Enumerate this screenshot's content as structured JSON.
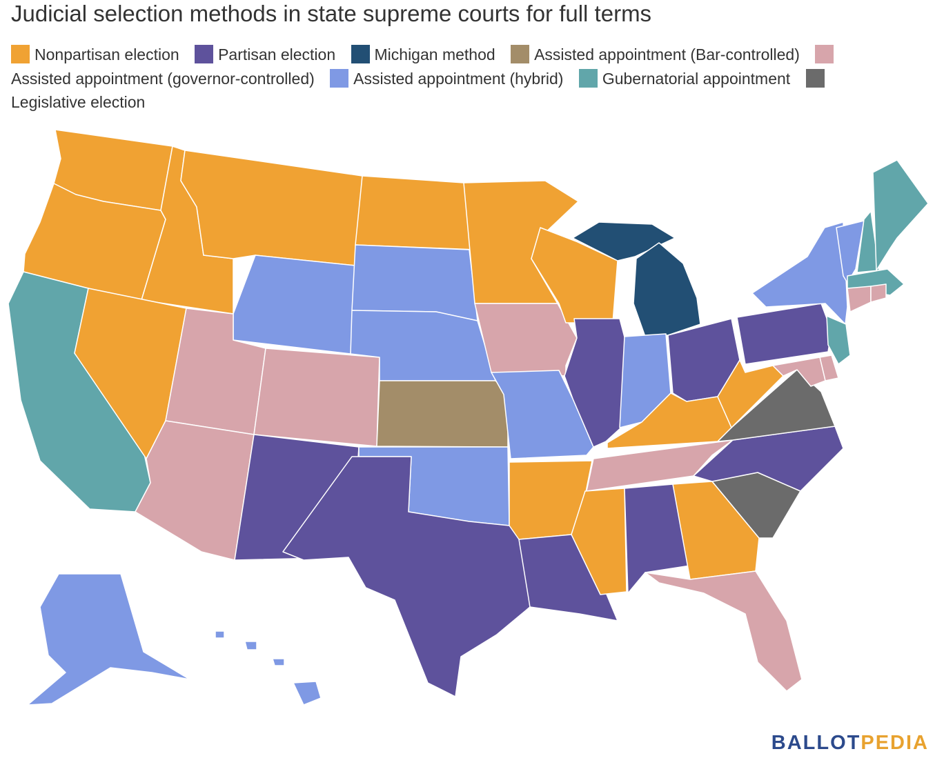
{
  "title": "Judicial selection methods in state supreme courts for full terms",
  "legend": [
    {
      "label": "Nonpartisan election",
      "color": "#f0a233"
    },
    {
      "label": "Partisan election",
      "color": "#5e529c"
    },
    {
      "label": "Michigan method",
      "color": "#224f74"
    },
    {
      "label": "Assisted appointment (Bar-controlled)",
      "color": "#a38d69"
    },
    {
      "label": "Assisted appointment (governor-controlled)",
      "color": "#d7a5ab"
    },
    {
      "label": "Assisted appointment (hybrid)",
      "color": "#7f99e4"
    },
    {
      "label": "Gubernatorial appointment",
      "color": "#61a6aa"
    },
    {
      "label": "Legislative election",
      "color": "#6b6b6b"
    }
  ],
  "chart_data": {
    "type": "choropleth",
    "categories": [
      "Nonpartisan election",
      "Partisan election",
      "Michigan method",
      "Assisted appointment (Bar-controlled)",
      "Assisted appointment (governor-controlled)",
      "Assisted appointment (hybrid)",
      "Gubernatorial appointment",
      "Legislative election"
    ],
    "states": {
      "WA": "Nonpartisan election",
      "OR": "Nonpartisan election",
      "ID": "Nonpartisan election",
      "MT": "Nonpartisan election",
      "NV": "Nonpartisan election",
      "ND": "Nonpartisan election",
      "MN": "Nonpartisan election",
      "WI": "Nonpartisan election",
      "AR": "Nonpartisan election",
      "MS": "Nonpartisan election",
      "GA": "Nonpartisan election",
      "KY": "Nonpartisan election",
      "WV": "Nonpartisan election",
      "NM": "Partisan election",
      "TX": "Partisan election",
      "LA": "Partisan election",
      "AL": "Partisan election",
      "IL": "Partisan election",
      "OH": "Partisan election",
      "PA": "Partisan election",
      "NC": "Partisan election",
      "MI": "Michigan method",
      "KS": "Assisted appointment (Bar-controlled)",
      "UT": "Assisted appointment (governor-controlled)",
      "CO": "Assisted appointment (governor-controlled)",
      "AZ": "Assisted appointment (governor-controlled)",
      "IA": "Assisted appointment (governor-controlled)",
      "TN": "Assisted appointment (governor-controlled)",
      "FL": "Assisted appointment (governor-controlled)",
      "MD": "Assisted appointment (governor-controlled)",
      "DE": "Assisted appointment (governor-controlled)",
      "CT": "Assisted appointment (governor-controlled)",
      "RI": "Assisted appointment (governor-controlled)",
      "AK": "Assisted appointment (hybrid)",
      "HI": "Assisted appointment (hybrid)",
      "WY": "Assisted appointment (hybrid)",
      "SD": "Assisted appointment (hybrid)",
      "NE": "Assisted appointment (hybrid)",
      "OK": "Assisted appointment (hybrid)",
      "MO": "Assisted appointment (hybrid)",
      "IN": "Assisted appointment (hybrid)",
      "NY": "Assisted appointment (hybrid)",
      "VT": "Assisted appointment (hybrid)",
      "CA": "Gubernatorial appointment",
      "NJ": "Gubernatorial appointment",
      "ME": "Gubernatorial appointment",
      "NH": "Gubernatorial appointment",
      "MA": "Gubernatorial appointment",
      "VA": "Legislative election",
      "SC": "Legislative election"
    }
  },
  "brand": {
    "part1": "BALLOT",
    "part2": "PEDIA"
  }
}
